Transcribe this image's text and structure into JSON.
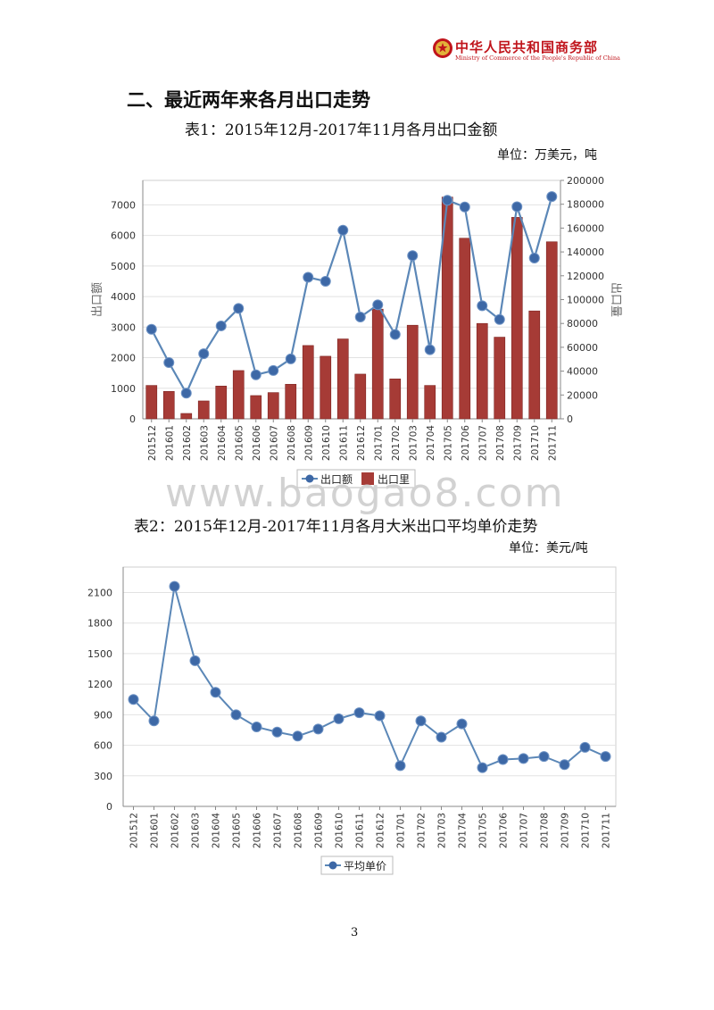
{
  "header": {
    "ministry_cn": "中华人民共和国商务部",
    "ministry_en": "Ministry of Commerce of the People's Republic of China"
  },
  "section_title": "二、最近两年来各月出口走势",
  "table1": {
    "caption": "表1：2015年12月-2017年11月各月出口金额",
    "unit": "单位：万美元，吨"
  },
  "table2": {
    "caption": "表2：2015年12月-2017年11月各月大米出口平均单价走势",
    "unit": "单位：美元/吨"
  },
  "watermark": "www.baogao8.com",
  "page_number": "3",
  "colors": {
    "line": "#5b87b7",
    "marker": "#3d68a6",
    "bar": "#a63b36",
    "header_red": "#c0141b"
  },
  "chart_data": [
    {
      "type": "bar+line",
      "categories": [
        "201512",
        "201601",
        "201602",
        "201603",
        "201604",
        "201605",
        "201606",
        "201607",
        "201608",
        "201609",
        "201610",
        "201611",
        "201612",
        "201701",
        "201702",
        "201703",
        "201704",
        "201705",
        "201706",
        "201707",
        "201708",
        "201709",
        "201710",
        "201711"
      ],
      "series": [
        {
          "name": "出口额",
          "type": "line",
          "axis": "left",
          "values": [
            2930,
            1840,
            840,
            2130,
            3040,
            3610,
            1440,
            1580,
            1960,
            4630,
            4500,
            6170,
            3330,
            3730,
            2760,
            5340,
            2260,
            7150,
            6930,
            3700,
            3250,
            6940,
            5260,
            7270
          ]
        },
        {
          "name": "出口里",
          "type": "bar",
          "axis": "right",
          "values": [
            28000,
            23000,
            4500,
            15000,
            27500,
            40500,
            19500,
            22000,
            29000,
            61500,
            52500,
            67000,
            37500,
            92000,
            33500,
            78500,
            28000,
            186000,
            151500,
            80000,
            68500,
            169000,
            90500,
            148500
          ]
        }
      ],
      "ylabel": "出口额",
      "ylabel2": "出口量",
      "ylim": [
        0,
        7800
      ],
      "y2lim": [
        0,
        200000
      ],
      "yticks": [
        0,
        1000,
        2000,
        3000,
        4000,
        5000,
        6000,
        7000
      ],
      "y2ticks": [
        0,
        20000,
        40000,
        60000,
        80000,
        100000,
        120000,
        140000,
        160000,
        180000,
        200000
      ],
      "grid": true,
      "legend": "bottom"
    },
    {
      "type": "line",
      "categories": [
        "201512",
        "201601",
        "201602",
        "201603",
        "201604",
        "201605",
        "201606",
        "201607",
        "201608",
        "201609",
        "201610",
        "201611",
        "201612",
        "201701",
        "201702",
        "201703",
        "201704",
        "201705",
        "201706",
        "201707",
        "201708",
        "201709",
        "201710",
        "201711"
      ],
      "series": [
        {
          "name": "平均单价",
          "values": [
            1050,
            840,
            2160,
            1430,
            1120,
            900,
            780,
            730,
            690,
            760,
            860,
            920,
            890,
            400,
            840,
            680,
            810,
            380,
            460,
            470,
            490,
            410,
            580,
            490
          ]
        }
      ],
      "ylim": [
        0,
        2350
      ],
      "yticks": [
        0,
        300,
        600,
        900,
        1200,
        1500,
        1800,
        2100
      ],
      "grid": true,
      "legend": "bottom"
    }
  ]
}
